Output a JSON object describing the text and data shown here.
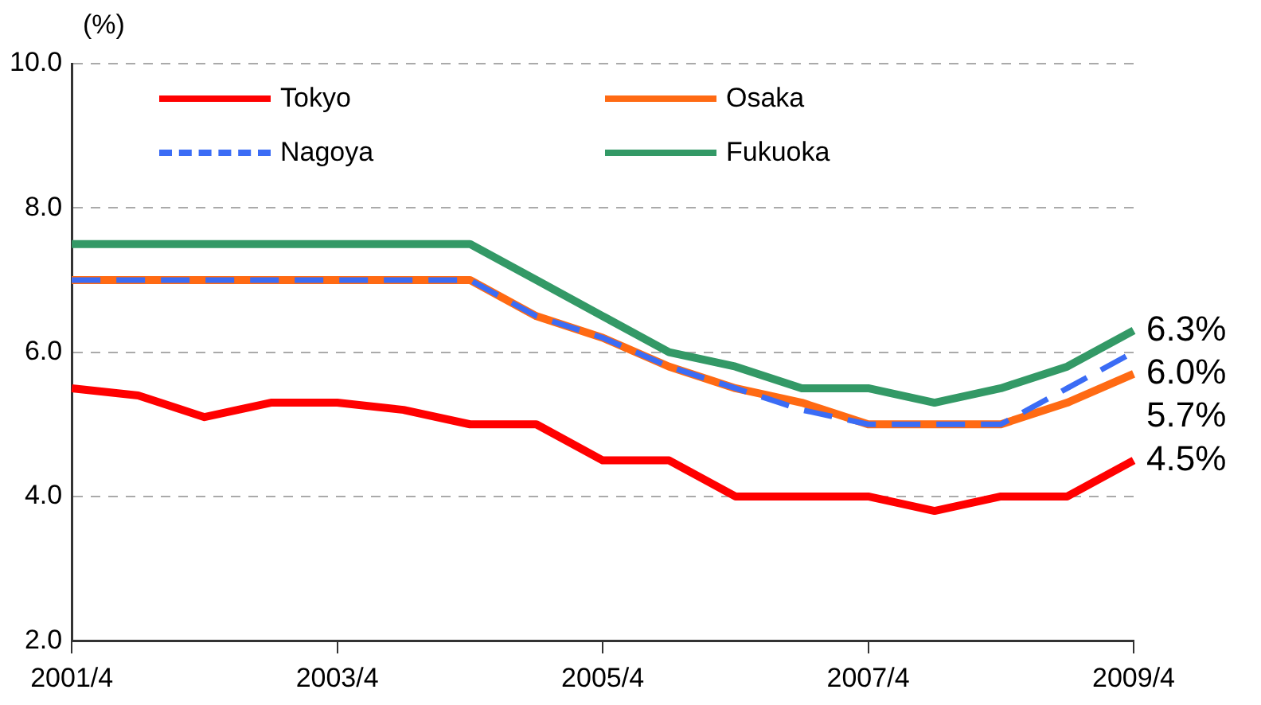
{
  "chart_data": {
    "type": "line",
    "ylabel": "(%)",
    "categories": [
      "2001/4",
      null,
      null,
      null,
      "2003/4",
      null,
      null,
      null,
      "2005/4",
      null,
      null,
      null,
      "2007/4",
      null,
      null,
      null,
      "2009/4"
    ],
    "series": [
      {
        "name": "Tokyo",
        "color": "#ff0000",
        "values": [
          5.5,
          5.4,
          5.1,
          5.3,
          5.3,
          5.2,
          5.0,
          5.0,
          4.5,
          4.5,
          4.0,
          4.0,
          4.0,
          3.8,
          4.0,
          4.0,
          4.5
        ]
      },
      {
        "name": "Osaka",
        "color": "#ff6a13",
        "values": [
          7.0,
          7.0,
          7.0,
          7.0,
          7.0,
          7.0,
          7.0,
          6.5,
          6.2,
          5.8,
          5.5,
          5.3,
          5.0,
          5.0,
          5.0,
          5.3,
          5.7
        ]
      },
      {
        "name": "Nagoya",
        "color": "#3b6cf5",
        "line_style": "dashed",
        "values": [
          7.0,
          7.0,
          7.0,
          7.0,
          7.0,
          7.0,
          7.0,
          6.5,
          6.2,
          5.8,
          5.5,
          5.2,
          5.0,
          5.0,
          5.0,
          5.5,
          6.0
        ]
      },
      {
        "name": "Fukuoka",
        "color": "#339966",
        "values": [
          7.5,
          7.5,
          7.5,
          7.5,
          7.5,
          7.5,
          7.5,
          7.0,
          6.5,
          6.0,
          5.8,
          5.5,
          5.5,
          5.3,
          5.5,
          5.8,
          6.3
        ]
      }
    ],
    "ylim": [
      2,
      10
    ],
    "yticks": [
      {
        "value": 2,
        "label": "2.0"
      },
      {
        "value": 4,
        "label": "4.0"
      },
      {
        "value": 6,
        "label": "6.0"
      },
      {
        "value": 8,
        "label": "8.0"
      },
      {
        "value": 10,
        "label": "10.0"
      }
    ],
    "grid": "y",
    "legend": "top",
    "marker": "none",
    "line_style": "solid",
    "annotations": [
      {
        "text": "6.3%",
        "x": "2009/4",
        "y": 6.3
      },
      {
        "text": "6.0%",
        "x": "2009/4",
        "y": 6.0
      },
      {
        "text": "5.7%",
        "x": "2009/4",
        "y": 5.7
      },
      {
        "text": "4.5%",
        "x": "2009/4",
        "y": 4.5
      }
    ]
  }
}
